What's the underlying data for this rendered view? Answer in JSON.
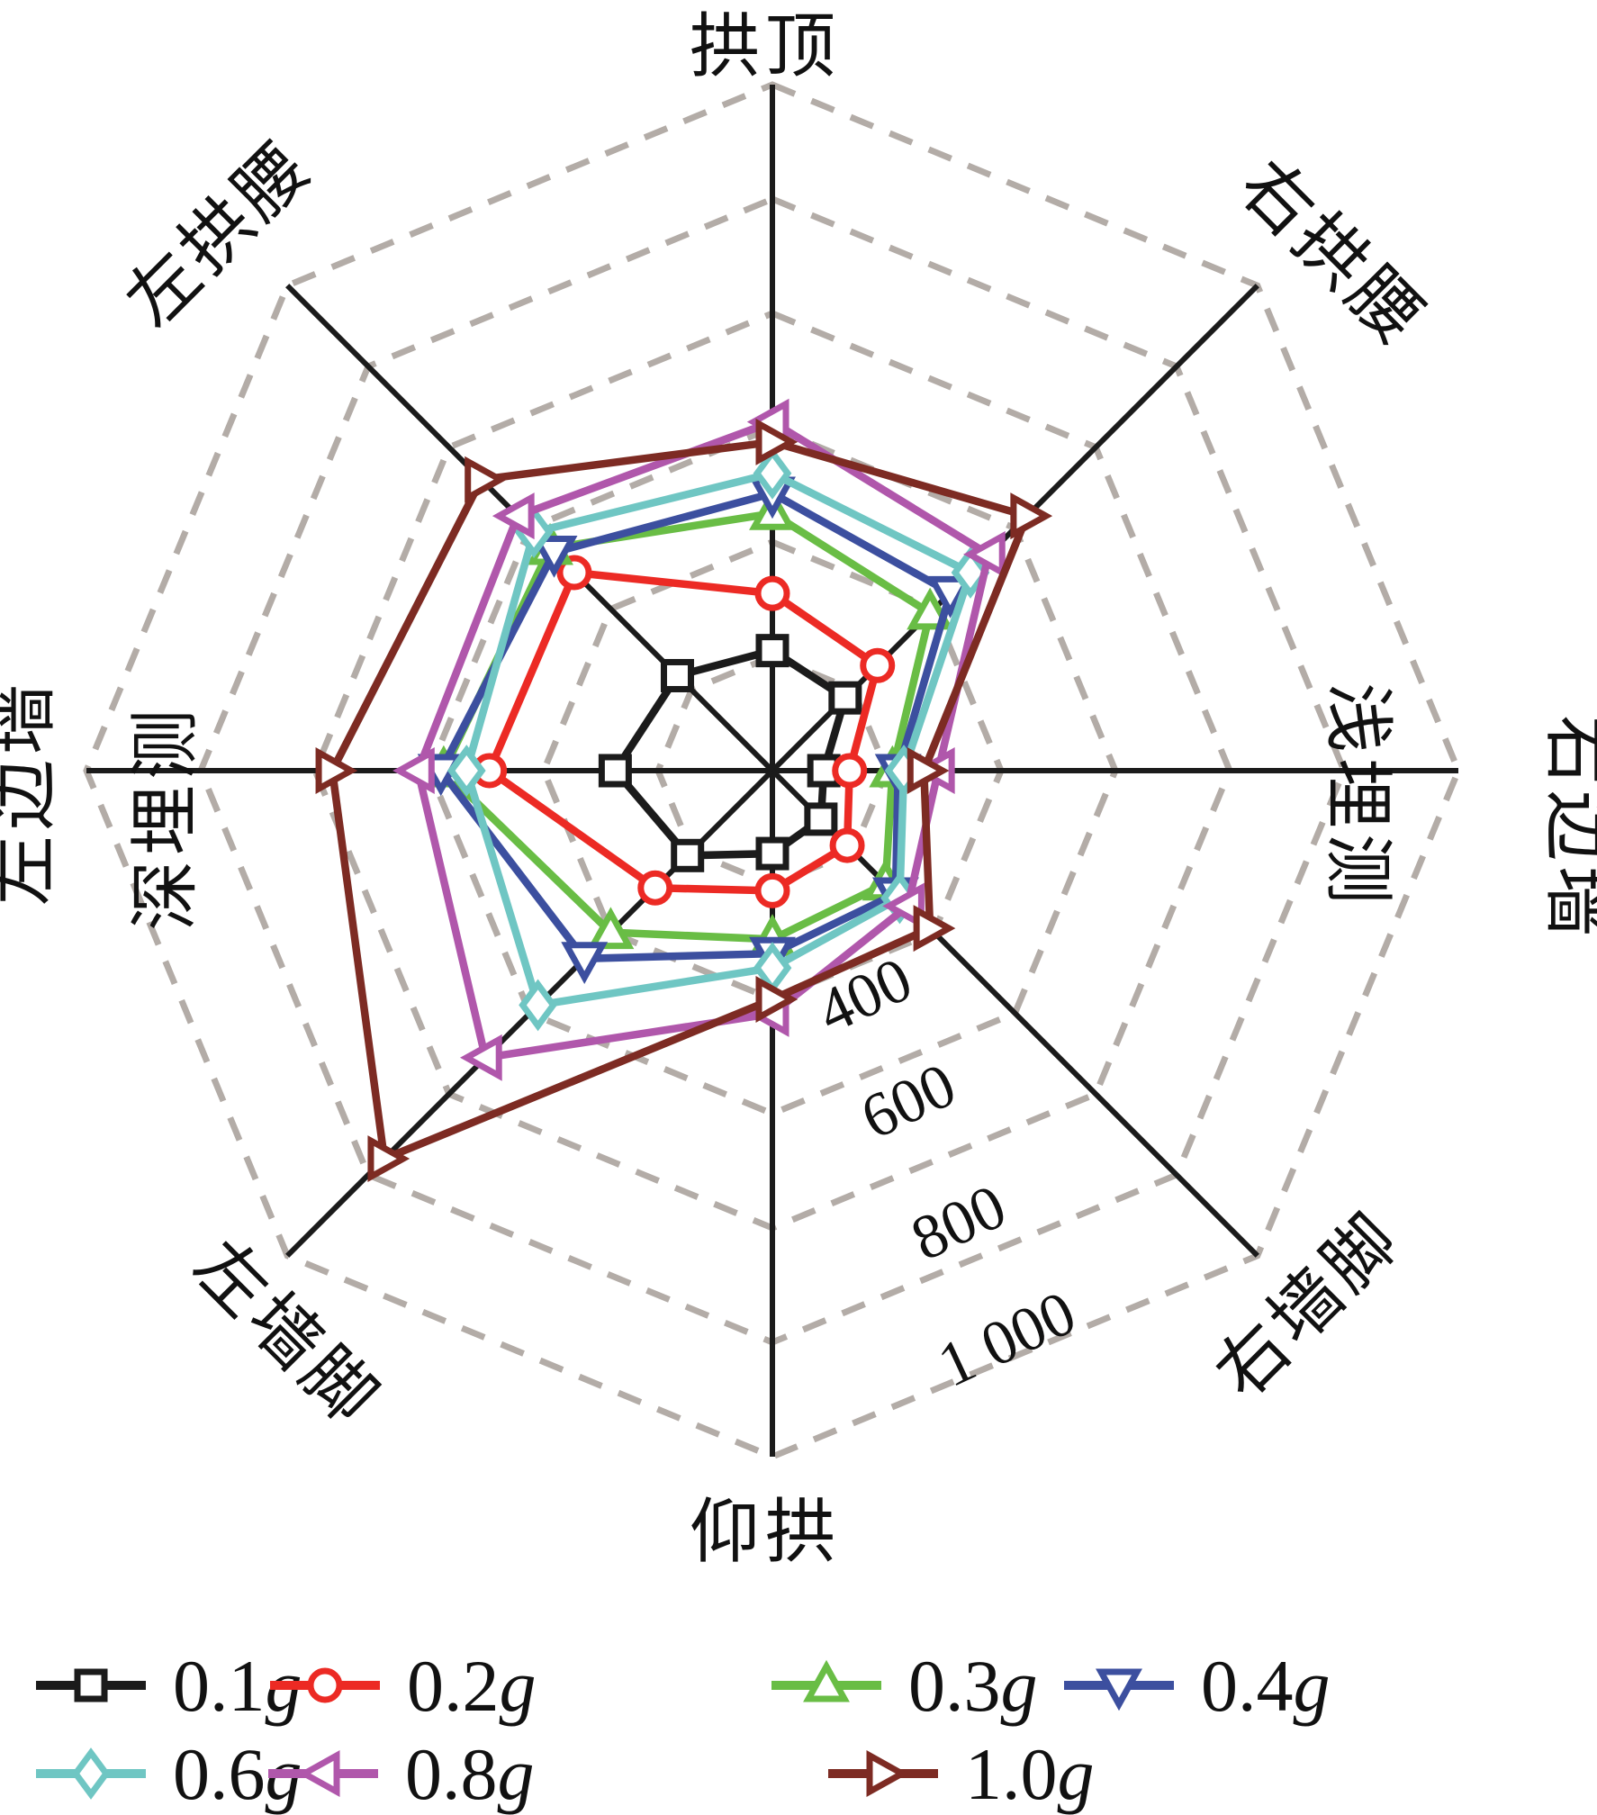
{
  "chart_data": {
    "type": "radar",
    "title": "",
    "r_max": 1200,
    "ring_step": 200,
    "grid": "dashed-octagon",
    "grid_color": "#b3aca7",
    "axis_color": "#1b1b1b",
    "tick_labels": [
      "400",
      "600",
      "800",
      "1 000"
    ],
    "categories": [
      "拱顶",
      "右拱腰",
      "右边墙",
      "右墙脚",
      "仰拱",
      "左墙脚",
      "左边墙",
      "左拱腰"
    ],
    "side_annotations": [
      {
        "text": "浅埋测",
        "side": "right"
      },
      {
        "text": "深埋测",
        "side": "left"
      }
    ],
    "legend_position": "bottom",
    "series": [
      {
        "name": "0.1g",
        "color": "#1b1b1b",
        "marker": "square",
        "values": [
          210,
          180,
          90,
          120,
          145,
          210,
          275,
          235
        ]
      },
      {
        "name": "0.2g",
        "color": "#ec2a24",
        "marker": "circle",
        "values": [
          310,
          260,
          135,
          185,
          210,
          290,
          495,
          490
        ]
      },
      {
        "name": "0.3g",
        "color": "#69bd45",
        "marker": "triangle-up",
        "values": [
          450,
          390,
          210,
          280,
          295,
          400,
          575,
          550
        ]
      },
      {
        "name": "0.4g",
        "color": "#3c4f9f",
        "marker": "triangle-down",
        "values": [
          485,
          440,
          220,
          305,
          320,
          465,
          580,
          540
        ]
      },
      {
        "name": "0.6g",
        "color": "#6fc6c3",
        "marker": "diamond",
        "values": [
          520,
          490,
          230,
          315,
          345,
          580,
          535,
          590
        ]
      },
      {
        "name": "0.8g",
        "color": "#b057ab",
        "marker": "triangle-left",
        "values": [
          610,
          535,
          290,
          335,
          425,
          710,
          620,
          630
        ]
      },
      {
        "name": "1.0g",
        "color": "#7d2b23",
        "marker": "triangle-right",
        "values": [
          575,
          630,
          265,
          390,
          400,
          960,
          770,
          720
        ]
      }
    ]
  }
}
